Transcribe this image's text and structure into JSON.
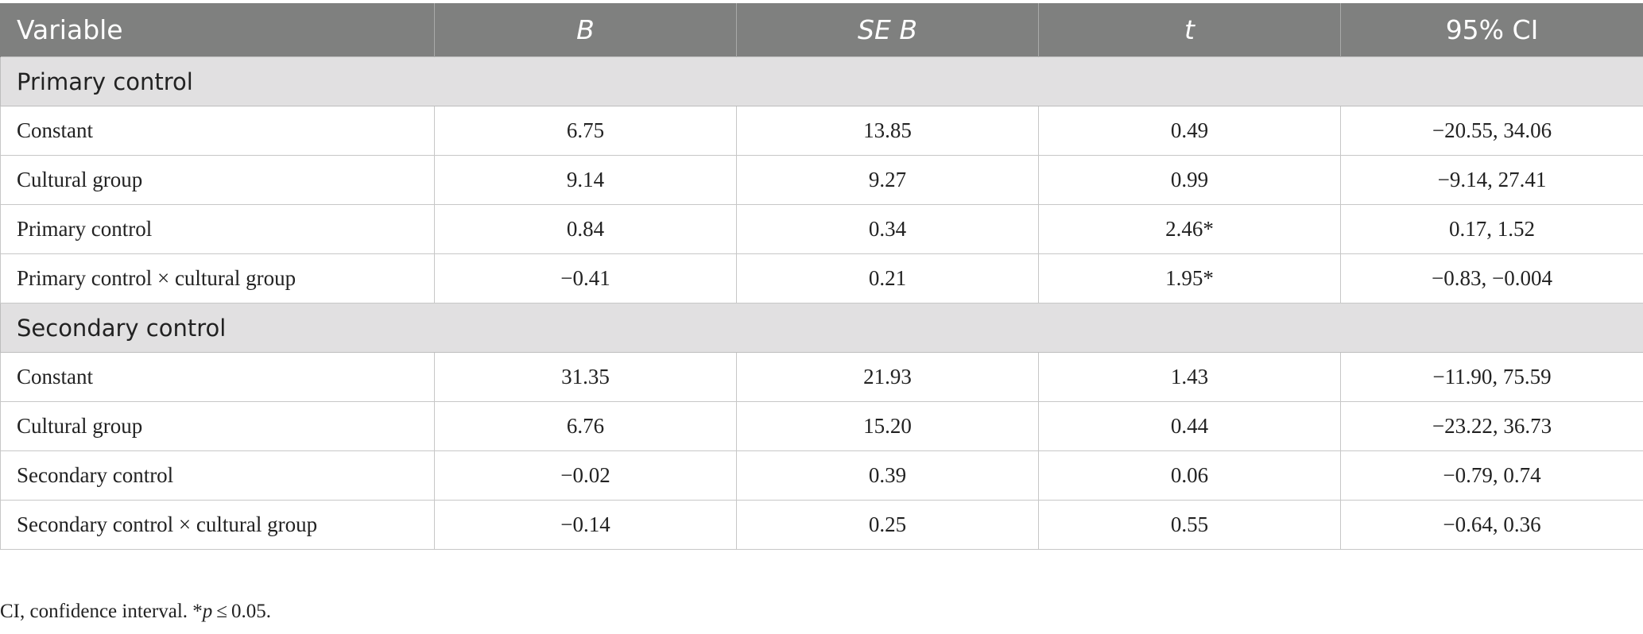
{
  "table": {
    "headers": {
      "variable": "Variable",
      "b": "B",
      "se_b": "SE B",
      "t": "t",
      "ci": "95% CI"
    },
    "sections": [
      {
        "title": "Primary control",
        "rows": [
          {
            "variable": "Constant",
            "b": "6.75",
            "se_b": "13.85",
            "t": "0.49",
            "ci": "−20.55, 34.06"
          },
          {
            "variable": "Cultural group",
            "b": "9.14",
            "se_b": "9.27",
            "t": "0.99",
            "ci": "−9.14, 27.41"
          },
          {
            "variable": "Primary control",
            "b": "0.84",
            "se_b": "0.34",
            "t": "2.46*",
            "ci": "0.17, 1.52"
          },
          {
            "variable": "Primary control × cultural group",
            "b": "−0.41",
            "se_b": "0.21",
            "t": "1.95*",
            "ci": "−0.83, −0.004"
          }
        ]
      },
      {
        "title": "Secondary control",
        "rows": [
          {
            "variable": "Constant",
            "b": "31.35",
            "se_b": "21.93",
            "t": "1.43",
            "ci": "−11.90, 75.59"
          },
          {
            "variable": "Cultural group",
            "b": "6.76",
            "se_b": "15.20",
            "t": "0.44",
            "ci": "−23.22, 36.73"
          },
          {
            "variable": "Secondary control",
            "b": "−0.02",
            "se_b": "0.39",
            "t": "0.06",
            "ci": "−0.79, 0.74"
          },
          {
            "variable": "Secondary control × cultural group",
            "b": "−0.14",
            "se_b": "0.25",
            "t": "0.55",
            "ci": "−0.64, 0.36"
          }
        ]
      }
    ]
  },
  "footnote": {
    "prefix": "CI, confidence interval. *",
    "p": "p",
    "suffix": " ≤ 0.05."
  },
  "colors": {
    "header_bg": "#7f807f",
    "header_text": "#ffffff",
    "section_bg": "#e1e0e1",
    "border": "#c7c7c7"
  }
}
